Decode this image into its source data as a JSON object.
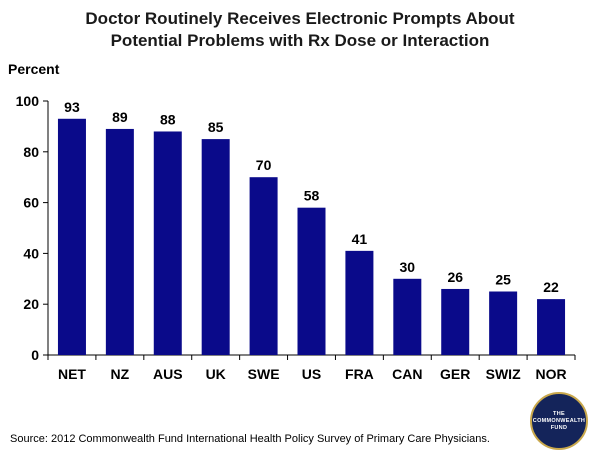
{
  "colors": {
    "bar": "#0a0a8a",
    "axis": "#000000",
    "logo_bg": "#14245a",
    "logo_ring": "#c9a84c"
  },
  "chart_data": {
    "type": "bar",
    "title": "Doctor Routinely Receives Electronic Prompts About Potential Problems with Rx Dose or Interaction",
    "title_lines": [
      "Doctor Routinely Receives Electronic Prompts About",
      "Potential Problems with Rx Dose or Interaction"
    ],
    "ylabel": "Percent",
    "xlabel": "",
    "categories": [
      "NET",
      "NZ",
      "AUS",
      "UK",
      "SWE",
      "US",
      "FRA",
      "CAN",
      "GER",
      "SWIZ",
      "NOR"
    ],
    "values": [
      93,
      89,
      88,
      85,
      70,
      58,
      41,
      30,
      26,
      25,
      22
    ],
    "ylim": [
      0,
      100
    ],
    "yticks": [
      0,
      20,
      40,
      60,
      80,
      100
    ],
    "grid": false,
    "legend": "none"
  },
  "source": "Source: 2012 Commonwealth Fund International Health Policy Survey of Primary Care Physicians.",
  "logo": {
    "text": "THE\nCOMMONWEALTH\nFUND"
  }
}
